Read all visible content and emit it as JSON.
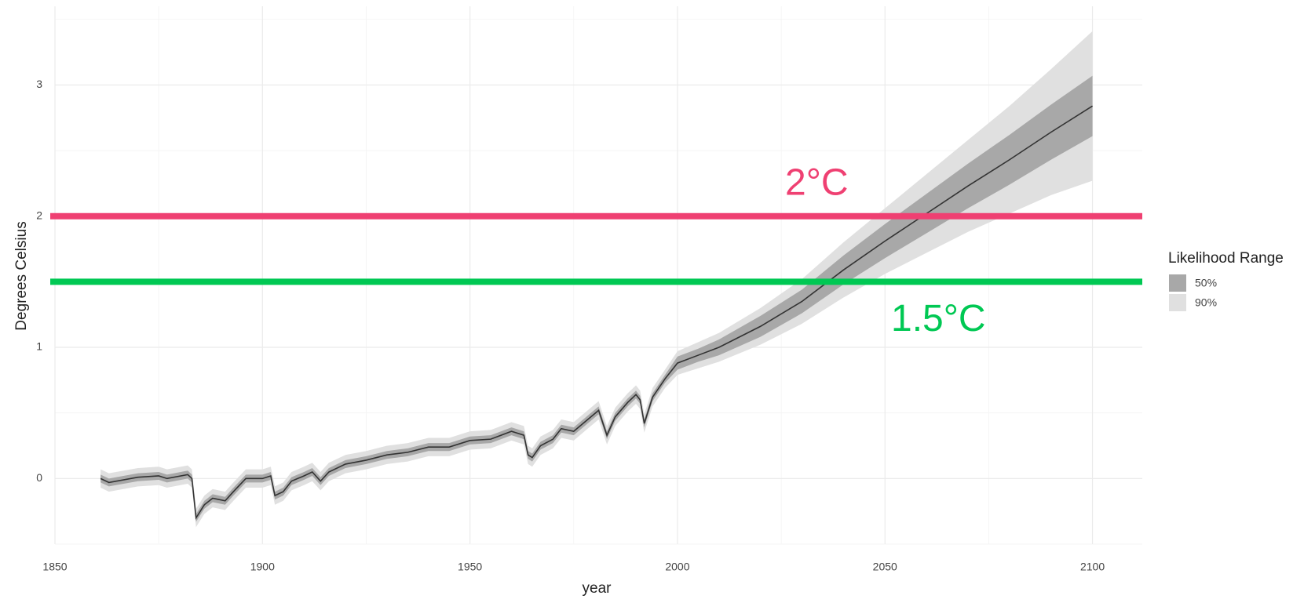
{
  "chart_data": {
    "type": "line",
    "x_label": "year",
    "y_label": "Degrees Celsius",
    "xlim": [
      1850,
      2112
    ],
    "ylim": [
      -0.5,
      3.6
    ],
    "xticks": [
      1850,
      1900,
      1950,
      2000,
      2050,
      2100
    ],
    "yticks": [
      0,
      1,
      2,
      3
    ],
    "grid": true,
    "x": [
      1861,
      1863,
      1870,
      1875,
      1877,
      1882,
      1883,
      1884,
      1886,
      1888,
      1891,
      1893,
      1896,
      1900,
      1902,
      1903,
      1905,
      1907,
      1910,
      1912,
      1914,
      1916,
      1920,
      1925,
      1930,
      1935,
      1940,
      1945,
      1950,
      1955,
      1960,
      1963,
      1964,
      1965,
      1967,
      1970,
      1972,
      1975,
      1978,
      1981,
      1983,
      1985,
      1988,
      1990,
      1991,
      1992,
      1994,
      1997,
      2000,
      2005,
      2010,
      2020,
      2030,
      2040,
      2050,
      2060,
      2070,
      2080,
      2090,
      2100
    ],
    "series": [
      {
        "color": "#333333",
        "values": [
          0,
          -0.03,
          0.01,
          0.02,
          0,
          0.03,
          0,
          -0.3,
          -0.2,
          -0.15,
          -0.17,
          -0.1,
          0,
          0,
          0.02,
          -0.13,
          -0.1,
          -0.02,
          0.02,
          0.05,
          -0.02,
          0.05,
          0.11,
          0.14,
          0.18,
          0.2,
          0.24,
          0.24,
          0.29,
          0.3,
          0.36,
          0.33,
          0.18,
          0.16,
          0.25,
          0.3,
          0.38,
          0.36,
          0.44,
          0.52,
          0.33,
          0.47,
          0.58,
          0.64,
          0.6,
          0.42,
          0.62,
          0.76,
          0.88,
          0.94,
          1.0,
          1.16,
          1.35,
          1.59,
          1.81,
          2.02,
          2.23,
          2.43,
          2.64,
          2.84
        ]
      }
    ],
    "legend_title": "Likelihood Range",
    "bands": [
      {
        "name": "50%",
        "color": "#a8a8a8",
        "lower": [
          -0.03,
          -0.06,
          -0.02,
          -0.01,
          -0.03,
          0,
          -0.03,
          -0.33,
          -0.23,
          -0.18,
          -0.2,
          -0.13,
          -0.03,
          -0.03,
          -0.01,
          -0.16,
          -0.13,
          -0.05,
          -0.01,
          0.02,
          -0.05,
          0.02,
          0.08,
          0.11,
          0.15,
          0.17,
          0.21,
          0.21,
          0.26,
          0.27,
          0.33,
          0.3,
          0.15,
          0.13,
          0.22,
          0.27,
          0.35,
          0.33,
          0.41,
          0.49,
          0.3,
          0.44,
          0.55,
          0.61,
          0.57,
          0.39,
          0.59,
          0.73,
          0.83,
          0.89,
          0.94,
          1.08,
          1.26,
          1.48,
          1.68,
          1.87,
          2.06,
          2.24,
          2.43,
          2.61
        ],
        "upper": [
          0.03,
          0,
          0.04,
          0.05,
          0.03,
          0.06,
          0.03,
          -0.27,
          -0.17,
          -0.12,
          -0.14,
          -0.07,
          0.03,
          0.03,
          0.05,
          -0.1,
          -0.07,
          0.01,
          0.05,
          0.08,
          0.01,
          0.08,
          0.14,
          0.17,
          0.21,
          0.23,
          0.27,
          0.27,
          0.32,
          0.33,
          0.39,
          0.36,
          0.21,
          0.19,
          0.28,
          0.33,
          0.41,
          0.39,
          0.47,
          0.55,
          0.36,
          0.5,
          0.61,
          0.67,
          0.63,
          0.45,
          0.65,
          0.79,
          0.93,
          0.99,
          1.06,
          1.24,
          1.44,
          1.7,
          1.94,
          2.17,
          2.4,
          2.62,
          2.85,
          3.07
        ]
      },
      {
        "name": "90%",
        "color": "#e0e0e0",
        "lower": [
          -0.07,
          -0.1,
          -0.06,
          -0.05,
          -0.07,
          -0.04,
          -0.07,
          -0.37,
          -0.27,
          -0.22,
          -0.24,
          -0.17,
          -0.07,
          -0.07,
          -0.05,
          -0.2,
          -0.17,
          -0.09,
          -0.05,
          -0.02,
          -0.09,
          -0.02,
          0.04,
          0.07,
          0.11,
          0.13,
          0.17,
          0.17,
          0.22,
          0.23,
          0.29,
          0.26,
          0.11,
          0.09,
          0.18,
          0.23,
          0.31,
          0.29,
          0.37,
          0.45,
          0.26,
          0.4,
          0.51,
          0.57,
          0.53,
          0.35,
          0.55,
          0.69,
          0.79,
          0.84,
          0.89,
          1.02,
          1.18,
          1.38,
          1.56,
          1.72,
          1.88,
          2.02,
          2.16,
          2.27
        ],
        "upper": [
          0.07,
          0.04,
          0.08,
          0.09,
          0.07,
          0.1,
          0.07,
          -0.23,
          -0.13,
          -0.08,
          -0.1,
          -0.03,
          0.07,
          0.07,
          0.09,
          -0.06,
          -0.03,
          0.05,
          0.09,
          0.12,
          0.05,
          0.12,
          0.18,
          0.21,
          0.25,
          0.27,
          0.31,
          0.31,
          0.36,
          0.37,
          0.43,
          0.4,
          0.25,
          0.23,
          0.32,
          0.37,
          0.45,
          0.43,
          0.51,
          0.59,
          0.4,
          0.54,
          0.65,
          0.71,
          0.67,
          0.49,
          0.69,
          0.83,
          0.97,
          1.04,
          1.11,
          1.3,
          1.52,
          1.8,
          2.06,
          2.32,
          2.58,
          2.84,
          3.12,
          3.41
        ]
      }
    ],
    "reference_lines": [
      {
        "value": 2,
        "label": "2°C",
        "color": "#ef4072"
      },
      {
        "value": 1.5,
        "label": "1.5°C",
        "color": "#00c853"
      }
    ]
  }
}
